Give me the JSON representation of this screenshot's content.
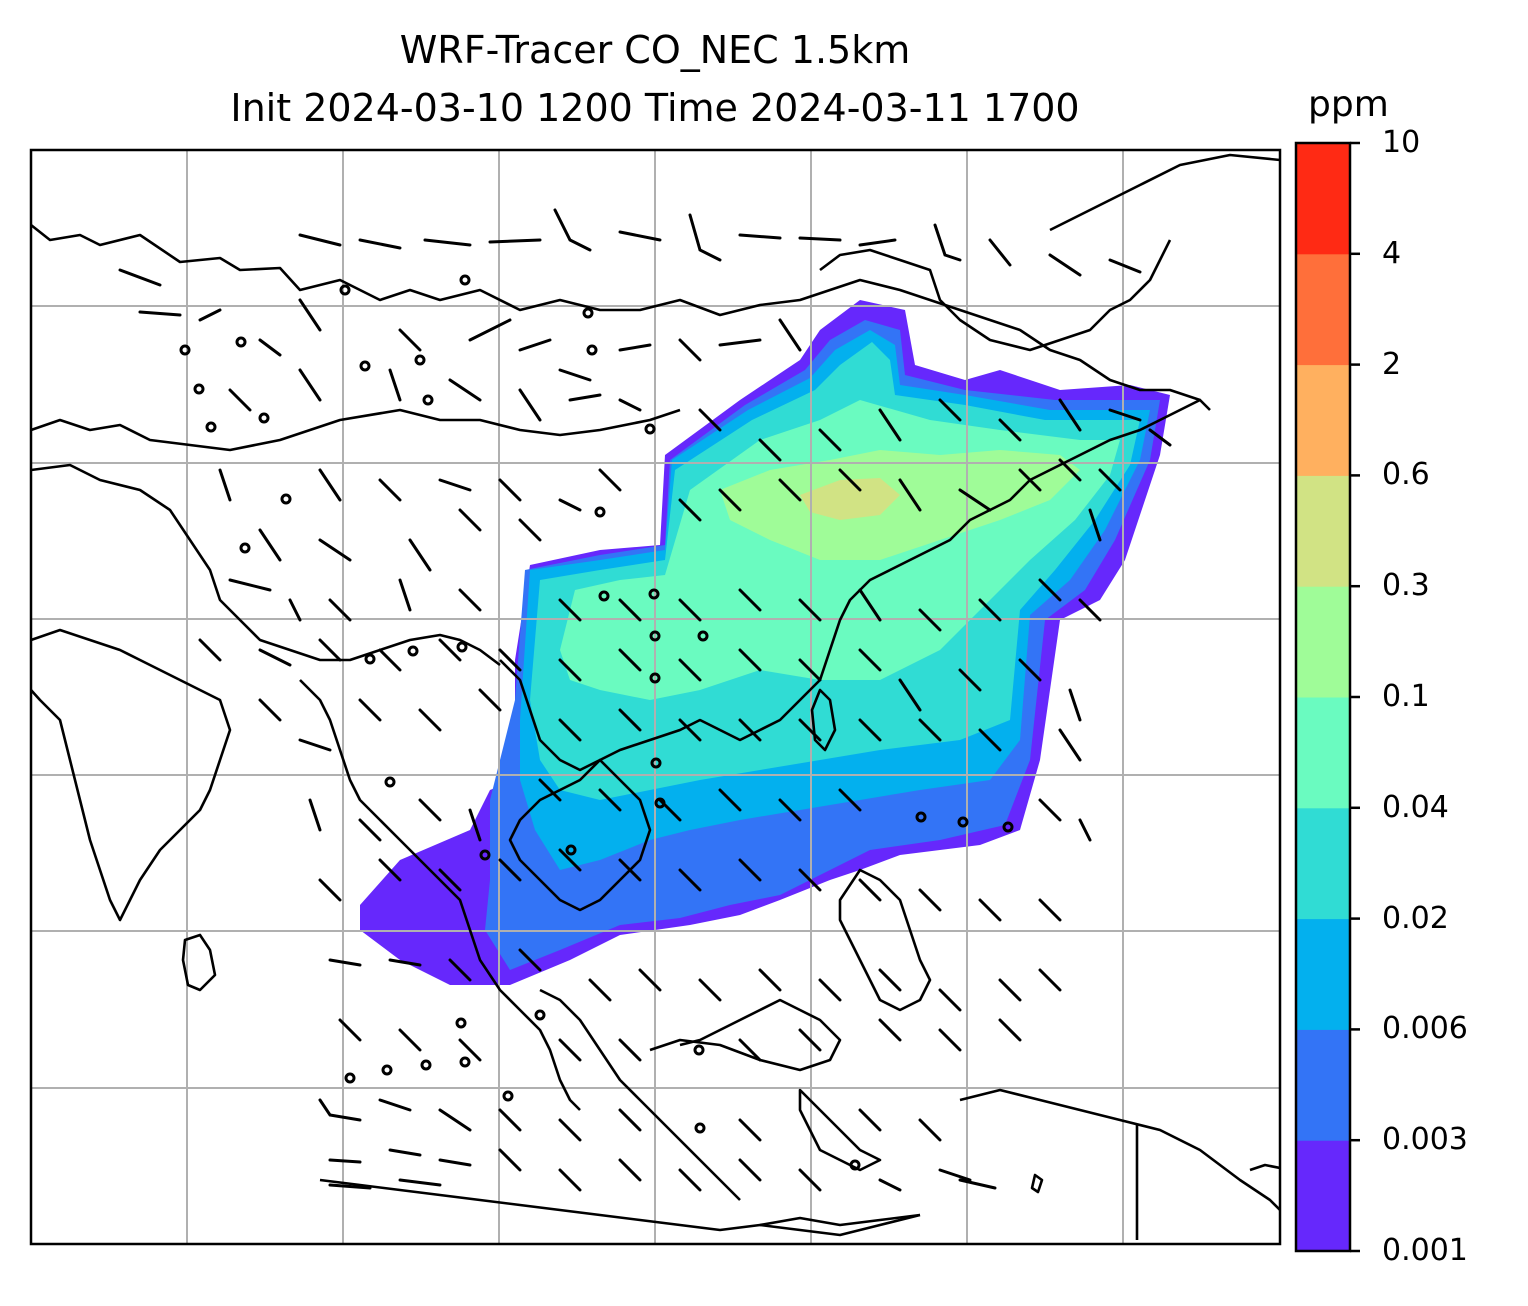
{
  "title": {
    "line1": "WRF-Tracer CO_NEC 1.5km",
    "line2": "Init 2024-03-10 1200 Time 2024-03-11 1700"
  },
  "colorbar": {
    "unit": "ppm",
    "levels": [
      "0.001",
      "0.003",
      "0.006",
      "0.02",
      "0.04",
      "0.1",
      "0.3",
      "0.6",
      "2",
      "4",
      "10"
    ],
    "colors": [
      "#6628fc",
      "#3374f6",
      "#03b0ee",
      "#30dcd4",
      "#6afbc0",
      "#9ffc98",
      "#d1e384",
      "#ffb05f",
      "#ff6f3a",
      "#ff2a14"
    ]
  },
  "colors": {
    "coast": "#000000",
    "grid": "#b0b0b0",
    "barb": "#000000"
  }
}
